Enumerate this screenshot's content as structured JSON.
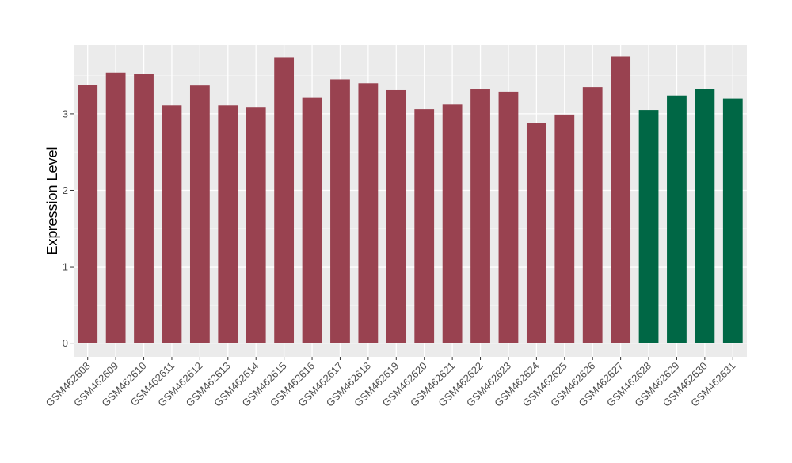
{
  "chart_data": {
    "type": "bar",
    "title": "",
    "xlabel": "",
    "ylabel": "Expression Level",
    "ylim": [
      -0.18,
      3.9
    ],
    "yticks": [
      0,
      1,
      2,
      3
    ],
    "grid": true,
    "legend": "none",
    "colors": {
      "group_a": "#994250",
      "group_b": "#006745",
      "panel": "#ebebeb",
      "gridline": "#ffffff"
    },
    "categories": [
      "GSM462608",
      "GSM462609",
      "GSM462610",
      "GSM462611",
      "GSM462612",
      "GSM462613",
      "GSM462614",
      "GSM462615",
      "GSM462616",
      "GSM462617",
      "GSM462618",
      "GSM462619",
      "GSM462620",
      "GSM462621",
      "GSM462622",
      "GSM462623",
      "GSM462624",
      "GSM462625",
      "GSM462626",
      "GSM462627",
      "GSM462628",
      "GSM462629",
      "GSM462630",
      "GSM462631"
    ],
    "values": [
      3.38,
      3.54,
      3.52,
      3.11,
      3.37,
      3.11,
      3.09,
      3.74,
      3.21,
      3.45,
      3.4,
      3.31,
      3.06,
      3.12,
      3.32,
      3.29,
      2.88,
      2.99,
      3.35,
      3.75,
      3.05,
      3.24,
      3.33,
      3.2
    ],
    "groups": [
      "a",
      "a",
      "a",
      "a",
      "a",
      "a",
      "a",
      "a",
      "a",
      "a",
      "a",
      "a",
      "a",
      "a",
      "a",
      "a",
      "a",
      "a",
      "a",
      "a",
      "b",
      "b",
      "b",
      "b"
    ]
  }
}
